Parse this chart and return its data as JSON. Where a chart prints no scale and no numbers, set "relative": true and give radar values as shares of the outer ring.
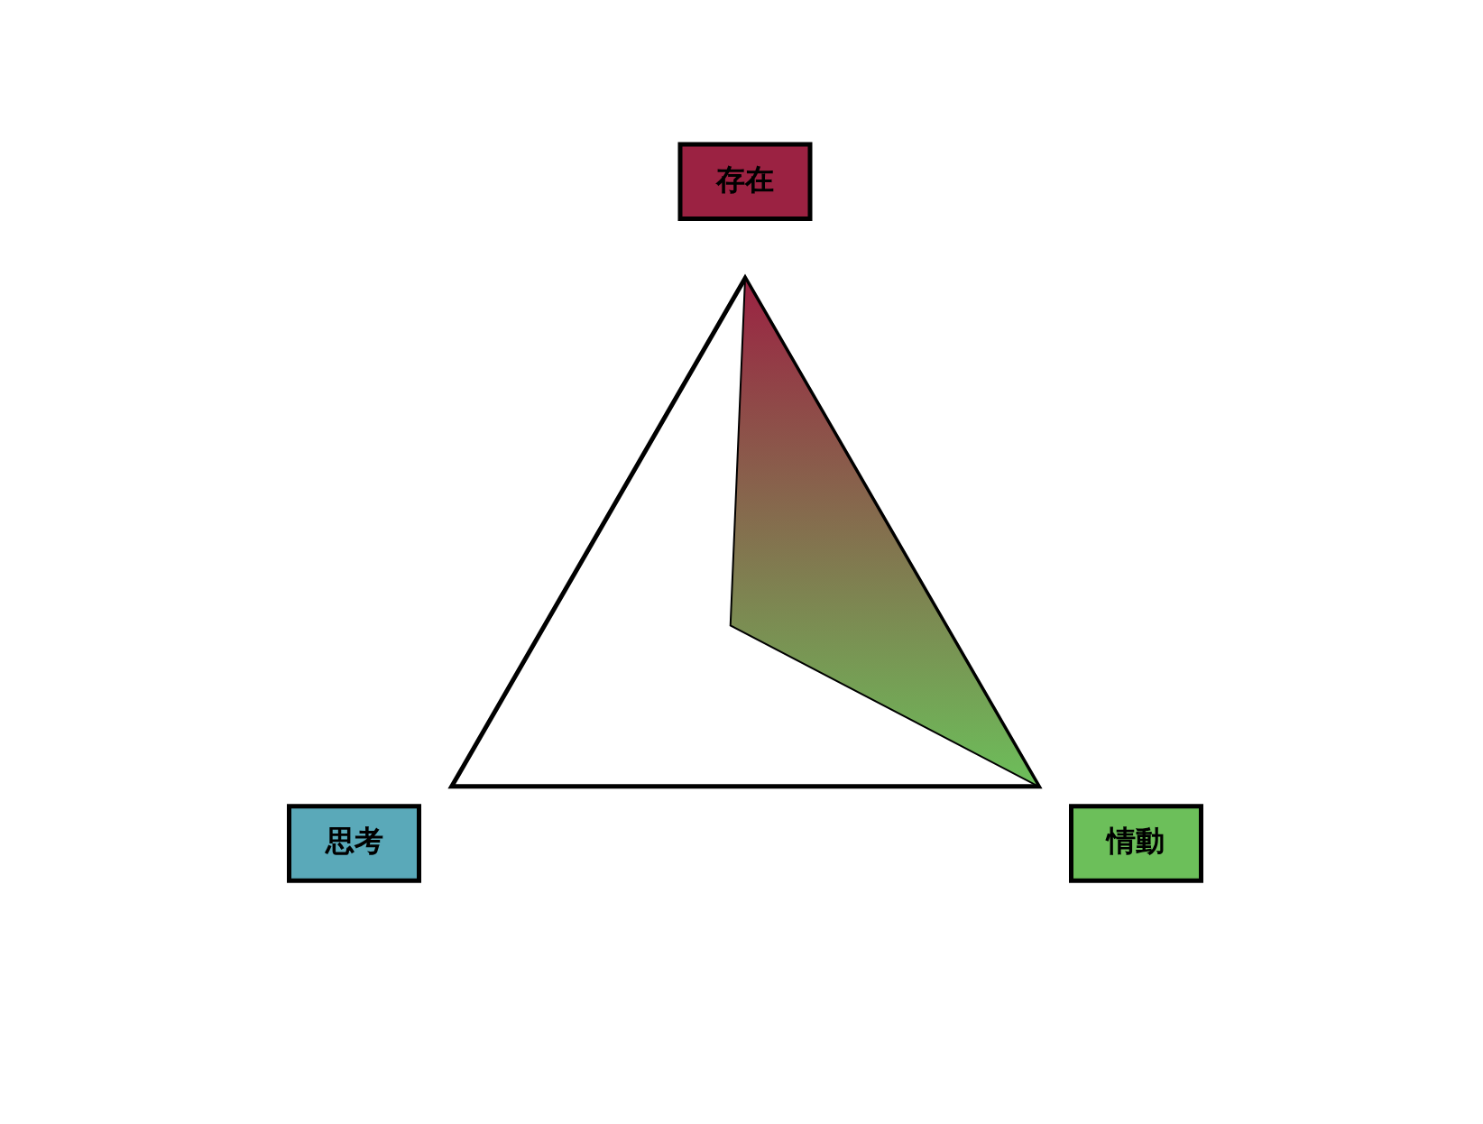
{
  "chart_data": {
    "type": "radar",
    "relative": true,
    "categories": [
      "存在",
      "情動",
      "思考"
    ],
    "colors": [
      "#9b2242",
      "#6cbf5a",
      "#5aa9b9"
    ],
    "series": [
      {
        "values": [
          1,
          1,
          0.05
        ]
      }
    ]
  }
}
